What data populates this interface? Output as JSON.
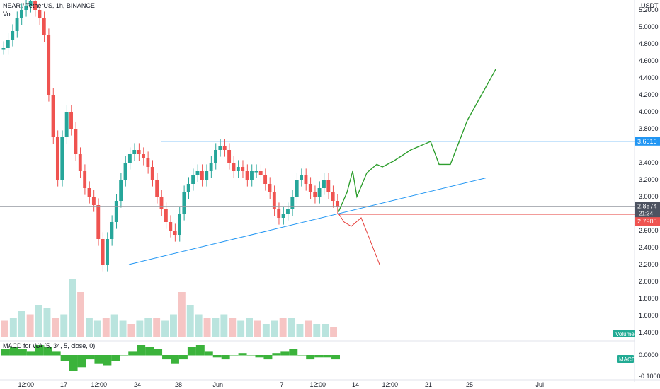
{
  "header": {
    "symbol_line": "NEAR / TetherUS, 1h, BINANCE",
    "vol_label": "Vol",
    "currency": "USDT"
  },
  "macd": {
    "label": "MACD for WA (5, 34, 5, close, 0)",
    "badge": "MACD",
    "ticks": [
      "0.0000",
      "-0.1000"
    ]
  },
  "volume_badge": "Volume",
  "price_badges": {
    "resistance": "3.6516",
    "current": "2.8874",
    "countdown": "21:34",
    "stop": "2.7905"
  },
  "x_ticks": [
    "12:00",
    "17",
    "12:00",
    "24",
    "28",
    "Jun",
    "7",
    "12:00",
    "14",
    "12:00",
    "21",
    "25",
    "Jul"
  ],
  "colors": {
    "up": "#26a69a",
    "down": "#ef5350",
    "blue_line": "#2196f3",
    "green_path": "#2e9e2e",
    "red_path": "#e53935",
    "macd_fill": "#3bb33b",
    "badge_green": "#22ab94"
  },
  "chart_data": {
    "type": "line",
    "title": "NEAR / TetherUS, 1h, BINANCE",
    "y_unit": "USDT",
    "y_ticks": [
      "5.2000",
      "5.0000",
      "4.8000",
      "4.6000",
      "4.4000",
      "4.2000",
      "4.0000",
      "3.8000",
      "3.4000",
      "3.2000",
      "3.0000",
      "2.6000",
      "2.4000",
      "2.2000",
      "2.0000",
      "1.8000",
      "1.6000",
      "1.4000"
    ],
    "ylim": [
      1.35,
      5.3
    ],
    "x_labels": [
      "12:00",
      "17",
      "12:00",
      "24",
      "28",
      "Jun",
      "7",
      "12:00",
      "14",
      "12:00",
      "21",
      "25",
      "Jul"
    ],
    "series": [
      {
        "type": "candles",
        "values": [
          4.75,
          4.85,
          4.95,
          5.1,
          5.2,
          5.25,
          5.3,
          5.2,
          5.1,
          4.9,
          4.2,
          3.7,
          3.2,
          3.7,
          4.0,
          3.8,
          3.5,
          3.3,
          3.1,
          3.0,
          2.9,
          2.5,
          2.2,
          2.5,
          2.7,
          2.95,
          3.2,
          3.4,
          3.5,
          3.55,
          3.5,
          3.45,
          3.35,
          3.2,
          3.0,
          2.85,
          2.7,
          2.6,
          2.55,
          2.8,
          3.05,
          3.15,
          3.25,
          3.3,
          3.2,
          3.3,
          3.4,
          3.55,
          3.6,
          3.55,
          3.4,
          3.3,
          3.35,
          3.3,
          3.2,
          3.3,
          3.3,
          3.25,
          3.15,
          3.05,
          2.85,
          2.75,
          2.8,
          2.85,
          3.0,
          3.2,
          3.25,
          3.15,
          3.05,
          3.0,
          3.1,
          3.2,
          3.05,
          2.95,
          2.88
        ]
      }
    ],
    "levels": [
      {
        "value": 3.6516,
        "label": "3.6516"
      },
      {
        "value": 2.8874,
        "label": "2.8874"
      },
      {
        "value": 2.7905,
        "label": "2.7905"
      }
    ],
    "trendline": {
      "start": 2.2,
      "end": 3.22
    },
    "projection_bullish": [
      2.82,
      3.05,
      3.3,
      3.0,
      3.28,
      3.38,
      3.35,
      3.42,
      3.55,
      3.65,
      3.38,
      3.38,
      3.9,
      4.5
    ],
    "projection_bearish": [
      2.8,
      2.7,
      2.65,
      2.75,
      2.5,
      2.2
    ],
    "volume": [
      0.25,
      0.3,
      0.4,
      0.35,
      0.5,
      0.45,
      0.3,
      0.35,
      0.9,
      0.7,
      0.3,
      0.25,
      0.3,
      0.35,
      0.25,
      0.2,
      0.25,
      0.3,
      0.3,
      0.25,
      0.35,
      0.7,
      0.5,
      0.35,
      0.3,
      0.3,
      0.35,
      0.3,
      0.25,
      0.3,
      0.25,
      0.2,
      0.25,
      0.3,
      0.3,
      0.2,
      0.25,
      0.2,
      0.2,
      0.15
    ],
    "macd_hist": [
      0.03,
      0.04,
      0.03,
      0.02,
      0.05,
      0.04,
      0.02,
      -0.03,
      -0.08,
      -0.06,
      -0.02,
      -0.04,
      -0.05,
      -0.03,
      0.0,
      0.02,
      0.05,
      0.04,
      0.03,
      -0.02,
      -0.04,
      -0.02,
      0.04,
      0.05,
      0.02,
      -0.01,
      -0.02,
      0.0,
      0.01,
      0.0,
      -0.01,
      -0.02,
      0.01,
      0.02,
      0.03,
      0.0,
      -0.02,
      -0.01,
      -0.01,
      -0.02
    ],
    "grid": false,
    "legend": "none"
  }
}
